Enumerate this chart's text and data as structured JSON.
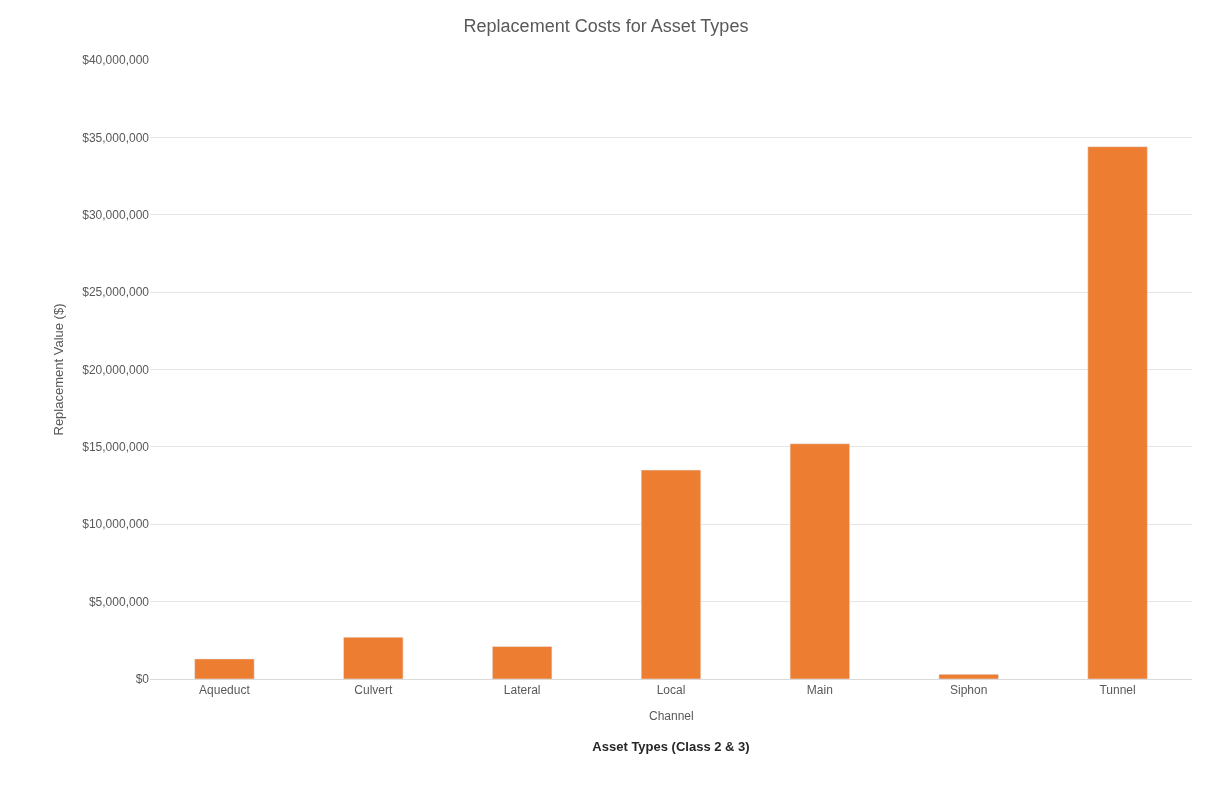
{
  "chart_data": {
    "type": "bar",
    "title": "Replacement Costs for Asset Types",
    "xlabel": "Asset Types (Class 2 & 3)",
    "ylabel": "Replacement Value ($)",
    "annotations": [
      "Channel"
    ],
    "categories": [
      "Aqueduct",
      "Culvert",
      "Lateral",
      "Local",
      "Main",
      "Siphon",
      "Tunnel"
    ],
    "values": [
      1300000,
      2700000,
      2100000,
      13500000,
      15200000,
      300000,
      34400000
    ],
    "color": "#ed7d31",
    "ylim": [
      0,
      40000000
    ],
    "yticks": [
      {
        "value": 0,
        "label": "$0"
      },
      {
        "value": 5000000,
        "label": "$5,000,000"
      },
      {
        "value": 10000000,
        "label": "$10,000,000"
      },
      {
        "value": 15000000,
        "label": "$15,000,000"
      },
      {
        "value": 20000000,
        "label": "$20,000,000"
      },
      {
        "value": 25000000,
        "label": "$25,000,000"
      },
      {
        "value": 30000000,
        "label": "$30,000,000"
      },
      {
        "value": 35000000,
        "label": "$35,000,000"
      },
      {
        "value": 40000000,
        "label": "$40,000,000"
      }
    ],
    "grid": "y",
    "legend": false
  }
}
